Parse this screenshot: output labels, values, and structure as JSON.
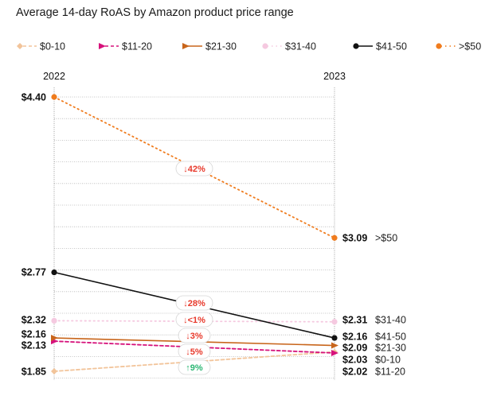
{
  "chart_data": {
    "type": "line",
    "title": "Average 14-day RoAS by Amazon product price range",
    "x": [
      "2022",
      "2023"
    ],
    "ylim": [
      1.7,
      4.52
    ],
    "grid": true,
    "legend_position": "top",
    "series": [
      {
        "name": "$0-10",
        "values": [
          1.85,
          2.03
        ],
        "color": "#f2c49a",
        "marker": "diamond",
        "line": "dashed",
        "start_label": "$1.85",
        "end_label": "$2.03",
        "end_name": "$0-10",
        "change": "↑9%",
        "change_color": "#2bb673"
      },
      {
        "name": "$11-20",
        "values": [
          2.13,
          2.02
        ],
        "color": "#d6127b",
        "marker": "triangle-right",
        "line": "dashed",
        "start_label": "$2.13",
        "end_label": "$2.02",
        "end_name": "$11-20",
        "change": "↓5%",
        "change_color": "#e8392b"
      },
      {
        "name": "$21-30",
        "values": [
          2.16,
          2.09
        ],
        "color": "#c8651b",
        "marker": "triangle-right",
        "line": "solid",
        "start_label": "$2.16",
        "end_label": "$2.09",
        "end_name": "$21-30",
        "change": "↓3%",
        "change_color": "#e8392b"
      },
      {
        "name": "$31-40",
        "values": [
          2.32,
          2.31
        ],
        "color": "#f5c9e0",
        "marker": "circle",
        "line": "dotted",
        "start_label": "$2.32",
        "end_label": "$2.31",
        "end_name": "$31-40",
        "change": "↓<1%",
        "change_color": "#e8392b"
      },
      {
        "name": "$41-50",
        "values": [
          2.77,
          2.16
        ],
        "color": "#111111",
        "marker": "circle",
        "line": "solid",
        "start_label": "$2.77",
        "end_label": "$2.16",
        "end_name": "$41-50",
        "change": "↓28%",
        "change_color": "#e8392b"
      },
      {
        "name": ">$50",
        "values": [
          4.4,
          3.09
        ],
        "color": "#f07c1e",
        "marker": "circle",
        "line": "dotted",
        "start_label": "$4.40",
        "end_label": "$3.09",
        "end_name": ">$50",
        "change": "↓42%",
        "change_color": "#e8392b"
      }
    ]
  }
}
